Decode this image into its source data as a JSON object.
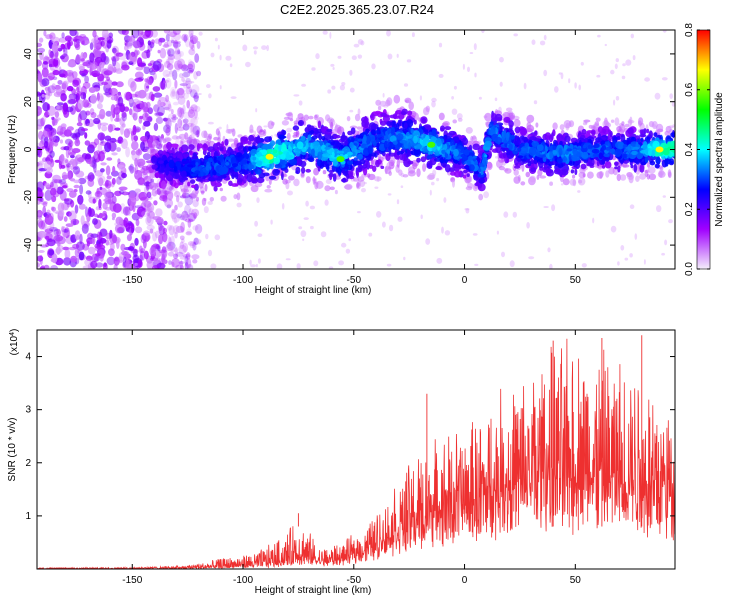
{
  "title": "C2E2.2025.365.23.07.R24",
  "chart_data": [
    {
      "type": "heatmap",
      "name": "spectrogram",
      "xlabel": "Height of straight line (km)",
      "ylabel": "Frequency (Hz)",
      "xlim": [
        -193,
        95
      ],
      "ylim": [
        -50,
        50
      ],
      "xticks": [
        -150,
        -100,
        -50,
        0,
        50
      ],
      "yticks": [
        -40,
        -20,
        0,
        20,
        40
      ],
      "colorbar": {
        "label": "Normalized spectral amplitude",
        "range": [
          0.0,
          0.8
        ],
        "ticks": [
          0.0,
          0.2,
          0.4,
          0.6,
          0.8
        ],
        "tick_labels": [
          "0.0",
          "0.2",
          "0.4",
          "0.6",
          "0.8"
        ],
        "colors": [
          "#f4eefb",
          "#a000ff",
          "#0000ff",
          "#00ffff",
          "#00ff00",
          "#ffff00",
          "#ff0000"
        ]
      },
      "noise_region_km": [
        -193,
        -120
      ],
      "signal_band": [
        {
          "x": -140,
          "f": -6,
          "width": 14,
          "amp": 0.25
        },
        {
          "x": -120,
          "f": -8,
          "width": 16,
          "amp": 0.35
        },
        {
          "x": -100,
          "f": -5,
          "width": 16,
          "amp": 0.35
        },
        {
          "x": -88,
          "f": -3,
          "width": 16,
          "amp": 0.55
        },
        {
          "x": -70,
          "f": 2,
          "width": 18,
          "amp": 0.4
        },
        {
          "x": -56,
          "f": -4,
          "width": 16,
          "amp": 0.45
        },
        {
          "x": -40,
          "f": 4,
          "width": 20,
          "amp": 0.35
        },
        {
          "x": -25,
          "f": 5,
          "width": 18,
          "amp": 0.4
        },
        {
          "x": -15,
          "f": 2,
          "width": 16,
          "amp": 0.45
        },
        {
          "x": 0,
          "f": -2,
          "width": 16,
          "amp": 0.35
        },
        {
          "x": 8,
          "f": -9,
          "width": 14,
          "amp": 0.4
        },
        {
          "x": 12,
          "f": 8,
          "width": 14,
          "amp": 0.4
        },
        {
          "x": 25,
          "f": 0,
          "width": 16,
          "amp": 0.35
        },
        {
          "x": 45,
          "f": -2,
          "width": 14,
          "amp": 0.4
        },
        {
          "x": 60,
          "f": 0,
          "width": 14,
          "amp": 0.35
        },
        {
          "x": 80,
          "f": 0,
          "width": 14,
          "amp": 0.4
        },
        {
          "x": 88,
          "f": 0,
          "width": 12,
          "amp": 0.55
        }
      ]
    },
    {
      "type": "line",
      "name": "snr",
      "xlabel": "Height of straight line (km)",
      "ylabel": "SNR (10 * v/v)",
      "yscale_label": "(x10",
      "yscale_exp": "4",
      "yscale_close": ")",
      "xlim": [
        -193,
        95
      ],
      "ylim": [
        0,
        4.5
      ],
      "xticks": [
        -150,
        -100,
        -50,
        0,
        50
      ],
      "yticks": [
        1,
        2,
        3,
        4
      ],
      "color": "#ee3030",
      "envelope": [
        {
          "x": -193,
          "max": 0.02,
          "base": 0.0
        },
        {
          "x": -150,
          "max": 0.03,
          "base": 0.0
        },
        {
          "x": -125,
          "max": 0.06,
          "base": 0.01
        },
        {
          "x": -110,
          "max": 0.2,
          "base": 0.02
        },
        {
          "x": -95,
          "max": 0.3,
          "base": 0.05
        },
        {
          "x": -82,
          "max": 0.6,
          "base": 0.1
        },
        {
          "x": -75,
          "max": 1.0,
          "base": 0.15
        },
        {
          "x": -65,
          "max": 0.4,
          "base": 0.1
        },
        {
          "x": -55,
          "max": 0.5,
          "base": 0.15
        },
        {
          "x": -45,
          "max": 0.8,
          "base": 0.3
        },
        {
          "x": -35,
          "max": 1.3,
          "base": 0.5
        },
        {
          "x": -25,
          "max": 2.0,
          "base": 0.7
        },
        {
          "x": -15,
          "max": 2.4,
          "base": 0.9
        },
        {
          "x": -5,
          "max": 2.6,
          "base": 1.0
        },
        {
          "x": 5,
          "max": 2.8,
          "base": 1.1
        },
        {
          "x": 15,
          "max": 3.3,
          "base": 1.3
        },
        {
          "x": 25,
          "max": 3.6,
          "base": 1.4
        },
        {
          "x": 35,
          "max": 4.0,
          "base": 1.5
        },
        {
          "x": 45,
          "max": 4.2,
          "base": 1.5
        },
        {
          "x": 55,
          "max": 4.3,
          "base": 1.5
        },
        {
          "x": 65,
          "max": 4.0,
          "base": 1.4
        },
        {
          "x": 75,
          "max": 4.0,
          "base": 1.4
        },
        {
          "x": 85,
          "max": 3.6,
          "base": 1.3
        },
        {
          "x": 95,
          "max": 3.0,
          "base": 1.2
        }
      ],
      "peaks": [
        {
          "x": 80,
          "y": 4.4
        },
        {
          "x": 40,
          "y": 4.3
        },
        {
          "x": 62,
          "y": 4.35
        },
        {
          "x": -17,
          "y": 3.3
        },
        {
          "x": -75,
          "y": 1.05
        }
      ]
    }
  ]
}
